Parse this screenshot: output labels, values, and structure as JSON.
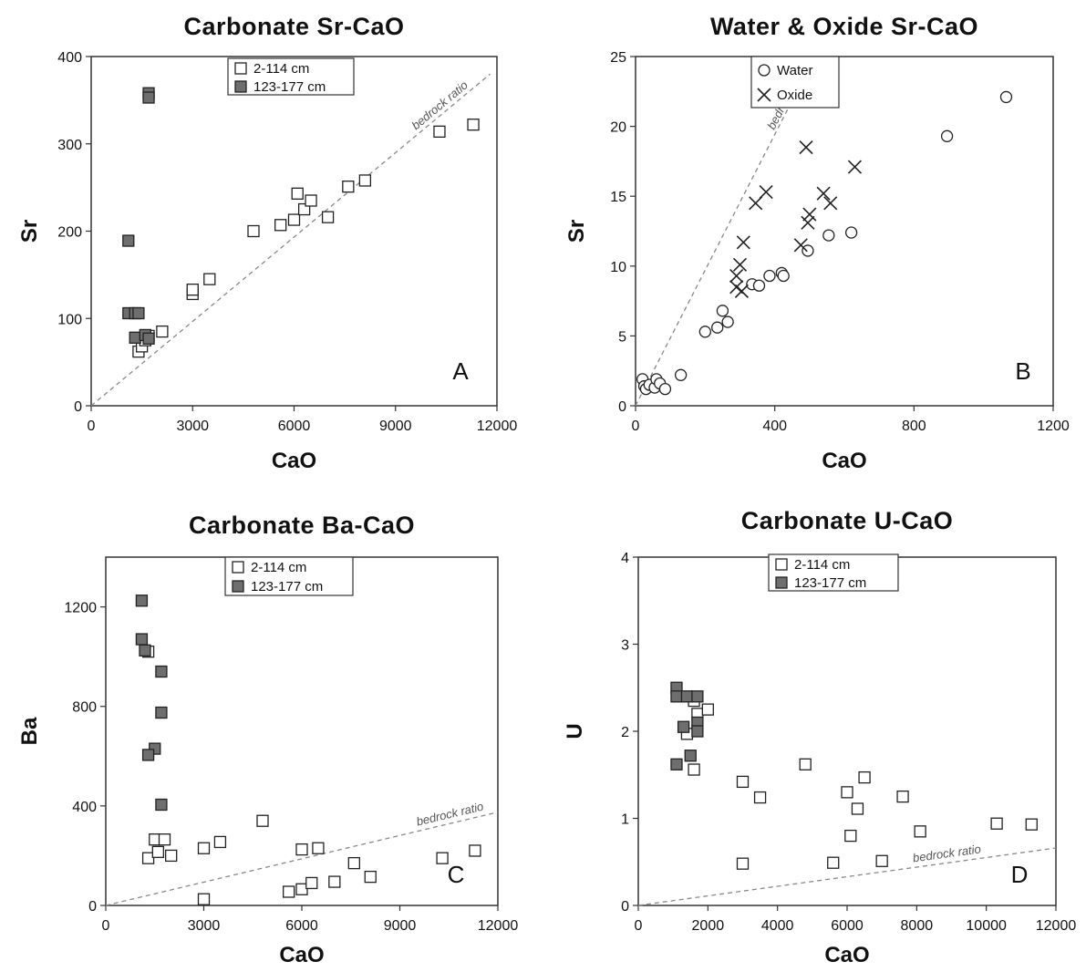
{
  "colors": {
    "open_marker_fill": "#ffffff",
    "filled_marker_fill": "#6e6e6e",
    "marker_stroke": "#222222",
    "bedrock_line": "#888888"
  },
  "chart_data": [
    {
      "type": "scatter",
      "panel": "A",
      "title": "Carbonate Sr-CaO",
      "xlabel": "CaO",
      "ylabel": "Sr",
      "xlim": [
        0,
        12000
      ],
      "ylim": [
        0,
        400
      ],
      "xticks": [
        "0",
        "3000",
        "6000",
        "9000",
        "12000"
      ],
      "yticks": [
        "0",
        "100",
        "200",
        "300",
        "400"
      ],
      "legend_position": "top-center",
      "reference_line": {
        "label": "bedrock ratio",
        "from": [
          0,
          0
        ],
        "to": [
          11800,
          380
        ]
      },
      "series": [
        {
          "name": "2-114 cm",
          "marker": "open-square",
          "x": [
            1400,
            1500,
            1600,
            1700,
            2100,
            3000,
            3000,
            3500,
            4800,
            5600,
            6000,
            6100,
            6300,
            6500,
            7000,
            7600,
            8100,
            10300,
            11300
          ],
          "y": [
            62,
            68,
            75,
            80,
            85,
            128,
            133,
            145,
            200,
            207,
            213,
            243,
            225,
            235,
            216,
            251,
            258,
            314,
            322
          ]
        },
        {
          "name": "123-177 cm",
          "marker": "filled-square",
          "x": [
            1700,
            1700,
            1100,
            1100,
            1300,
            1400,
            1300,
            1600,
            1700
          ],
          "y": [
            358,
            353,
            189,
            106,
            106,
            106,
            78,
            81,
            77
          ]
        }
      ]
    },
    {
      "type": "scatter",
      "panel": "B",
      "title": "Water & Oxide Sr-CaO",
      "xlabel": "CaO",
      "ylabel": "Sr",
      "xlim": [
        0,
        1200
      ],
      "ylim": [
        0,
        25
      ],
      "xticks": [
        "0",
        "400",
        "800",
        "1200"
      ],
      "yticks": [
        "0",
        "5",
        "10",
        "15",
        "20",
        "25"
      ],
      "legend_position": "top-left",
      "reference_line": {
        "label": "bedrock ratio",
        "from": [
          0,
          0
        ],
        "to": [
          515,
          25
        ]
      },
      "series": [
        {
          "name": "Water",
          "marker": "open-circle",
          "x": [
            20,
            25,
            30,
            40,
            55,
            60,
            70,
            85,
            130,
            200,
            235,
            250,
            265,
            335,
            355,
            385,
            420,
            425,
            495,
            555,
            620,
            895,
            1065
          ],
          "y": [
            1.9,
            1.4,
            1.2,
            1.5,
            1.3,
            1.9,
            1.6,
            1.2,
            2.2,
            5.3,
            5.6,
            6.8,
            6.0,
            8.7,
            8.6,
            9.3,
            9.5,
            9.3,
            11.1,
            12.2,
            12.4,
            19.3,
            22.1
          ]
        },
        {
          "name": "Oxide",
          "marker": "x",
          "x": [
            290,
            290,
            300,
            305,
            310,
            345,
            375,
            475,
            490,
            495,
            500,
            540,
            560,
            630
          ],
          "y": [
            9.3,
            8.5,
            10.1,
            8.2,
            11.7,
            14.5,
            15.3,
            11.5,
            18.5,
            13.1,
            13.7,
            15.2,
            14.5,
            17.1
          ]
        }
      ]
    },
    {
      "type": "scatter",
      "panel": "C",
      "title": "Carbonate Ba-CaO",
      "xlabel": "CaO",
      "ylabel": "Ba",
      "xlim": [
        0,
        12000
      ],
      "ylim": [
        0,
        1400
      ],
      "xticks": [
        "0",
        "3000",
        "6000",
        "9000",
        "12000"
      ],
      "yticks": [
        "0",
        "400",
        "800",
        "1200"
      ],
      "legend_position": "top-center",
      "reference_line": {
        "label": "bedrock ratio",
        "from": [
          0,
          0
        ],
        "to": [
          12000,
          375
        ]
      },
      "series": [
        {
          "name": "2-114 cm",
          "marker": "open-square",
          "x": [
            1300,
            1300,
            1500,
            1600,
            1800,
            2000,
            3000,
            3000,
            3500,
            4800,
            5600,
            6000,
            6000,
            6300,
            6500,
            7000,
            7600,
            8100,
            10300,
            11300
          ],
          "y": [
            1020,
            190,
            265,
            215,
            265,
            200,
            230,
            25,
            255,
            340,
            55,
            225,
            65,
            90,
            230,
            95,
            170,
            115,
            190,
            220
          ]
        },
        {
          "name": "123-177 cm",
          "marker": "filled-square",
          "x": [
            1100,
            1100,
            1200,
            1700,
            1700,
            1500,
            1300,
            1700
          ],
          "y": [
            1225,
            1070,
            1025,
            940,
            775,
            630,
            605,
            405
          ]
        }
      ]
    },
    {
      "type": "scatter",
      "panel": "D",
      "title": "Carbonate U-CaO",
      "xlabel": "CaO",
      "ylabel": "U",
      "xlim": [
        0,
        12000
      ],
      "ylim": [
        0,
        4
      ],
      "xticks": [
        "0",
        "2000",
        "4000",
        "6000",
        "8000",
        "10000",
        "12000"
      ],
      "yticks": [
        "0",
        "1",
        "2",
        "3",
        "4"
      ],
      "legend_position": "top-center",
      "reference_line": {
        "label": "bedrock ratio",
        "from": [
          0,
          0
        ],
        "to": [
          12000,
          0.66
        ]
      },
      "series": [
        {
          "name": "2-114 cm",
          "marker": "open-square",
          "x": [
            1400,
            1600,
            1700,
            2000,
            1600,
            3000,
            3000,
            3500,
            4800,
            5600,
            6000,
            6100,
            6300,
            6500,
            7000,
            7600,
            8100,
            10300,
            11300
          ],
          "y": [
            1.97,
            2.35,
            2.2,
            2.25,
            1.56,
            1.42,
            0.48,
            1.24,
            1.62,
            0.49,
            1.3,
            0.8,
            1.11,
            1.47,
            0.51,
            1.25,
            0.85,
            0.94,
            0.93
          ]
        },
        {
          "name": "123-177 cm",
          "marker": "filled-square",
          "x": [
            1100,
            1100,
            1400,
            1700,
            1700,
            1700,
            1300,
            1500,
            1100
          ],
          "y": [
            2.5,
            2.4,
            2.4,
            2.4,
            2.1,
            2.0,
            2.05,
            1.72,
            1.62
          ]
        }
      ]
    }
  ]
}
